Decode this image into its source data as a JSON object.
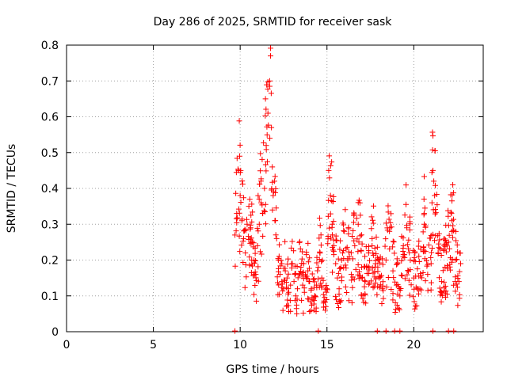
{
  "chart_data": {
    "type": "scatter",
    "title": "Day 286 of 2025, SRMTID for receiver sask",
    "xlabel": "GPS time / hours",
    "ylabel": "SRMTID / TECUs",
    "xlim": [
      0,
      24
    ],
    "ylim": [
      0,
      0.8
    ],
    "grid": true,
    "marker": "+",
    "color": "#ff0000",
    "xticks": [
      0,
      5,
      10,
      15,
      20
    ],
    "xtick_labels": [
      "0",
      "5",
      "10",
      "15",
      "20"
    ],
    "yticks": [
      0,
      0.1,
      0.2,
      0.3,
      0.4,
      0.5,
      0.6,
      0.7,
      0.8
    ],
    "ytick_labels": [
      "0",
      "0.1",
      "0.2",
      "0.3",
      "0.4",
      "0.5",
      "0.6",
      "0.7",
      "0.8"
    ],
    "series": [
      {
        "name": "SRMTID",
        "x": [
          9.7,
          9.8,
          9.9,
          10.0,
          10.1,
          10.2,
          10.3,
          10.4,
          10.5,
          10.6,
          10.7,
          10.8,
          10.9,
          11.0,
          11.1,
          11.2,
          11.3,
          11.4,
          11.5,
          11.6,
          11.7,
          11.75,
          11.8,
          11.85,
          11.9,
          12.0,
          12.1,
          12.2,
          12.3,
          12.4,
          12.5,
          12.6,
          12.7,
          12.8,
          12.9,
          13.0,
          13.1,
          13.2,
          13.3,
          13.4,
          13.5,
          13.6,
          13.7,
          13.8,
          13.9,
          14.0,
          14.1,
          14.2,
          14.3,
          14.4,
          14.5,
          14.6,
          14.7,
          14.8,
          14.9,
          15.0,
          15.1,
          15.2,
          15.3,
          15.4,
          15.5,
          15.6,
          15.7,
          15.8,
          15.9,
          16.0,
          16.2,
          16.4,
          16.6,
          16.8,
          17.0,
          17.2,
          17.4,
          17.6,
          17.8,
          18.0,
          18.2,
          18.4,
          18.6,
          18.8,
          19.0,
          19.2,
          19.4,
          19.6,
          19.8,
          20.0,
          20.2,
          20.4,
          20.6,
          20.8,
          21.0,
          21.1,
          21.2,
          21.4,
          21.6,
          21.8,
          22.0,
          22.2,
          22.4,
          22.6,
          22.7
        ],
        "y": [
          0.27,
          0.33,
          0.45,
          0.38,
          0.31,
          0.26,
          0.22,
          0.3,
          0.35,
          0.29,
          0.25,
          0.2,
          0.16,
          0.24,
          0.3,
          0.36,
          0.33,
          0.4,
          0.52,
          0.61,
          0.7,
          0.77,
          0.57,
          0.46,
          0.38,
          0.31,
          0.26,
          0.2,
          0.16,
          0.14,
          0.12,
          0.17,
          0.15,
          0.11,
          0.13,
          0.19,
          0.14,
          0.1,
          0.12,
          0.16,
          0.18,
          0.13,
          0.11,
          0.15,
          0.17,
          0.14,
          0.12,
          0.09,
          0.1,
          0.13,
          0.18,
          0.22,
          0.15,
          0.08,
          0.06,
          0.12,
          0.45,
          0.38,
          0.3,
          0.24,
          0.19,
          0.15,
          0.12,
          0.18,
          0.22,
          0.28,
          0.2,
          0.16,
          0.24,
          0.3,
          0.18,
          0.14,
          0.22,
          0.26,
          0.19,
          0.15,
          0.12,
          0.2,
          0.28,
          0.17,
          0.13,
          0.1,
          0.24,
          0.29,
          0.2,
          0.15,
          0.12,
          0.23,
          0.3,
          0.16,
          0.19,
          0.45,
          0.38,
          0.22,
          0.14,
          0.18,
          0.25,
          0.31,
          0.2,
          0.14,
          0.19
        ]
      }
    ],
    "zero_markers_x": [
      9.7,
      14.5,
      17.9,
      18.4,
      18.9,
      19.2,
      21.1,
      22.0,
      22.3
    ],
    "scatter_density": 650,
    "scatter_seed": 286
  }
}
